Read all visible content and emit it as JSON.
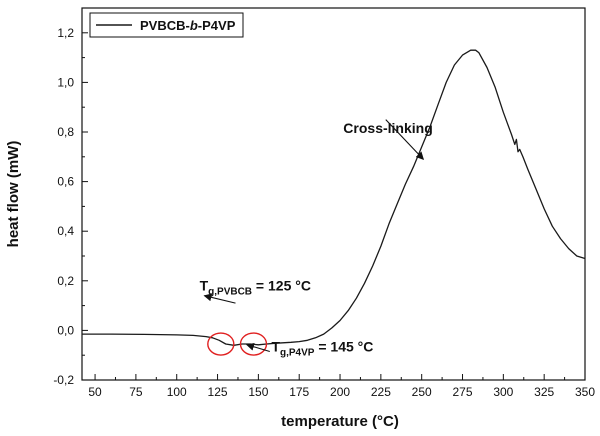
{
  "chart_data": {
    "type": "line",
    "xlabel": "temperature (°C)",
    "ylabel": "heat flow (mW)",
    "xlim": [
      42,
      350
    ],
    "ylim": [
      -0.2,
      1.3
    ],
    "x_ticks": [
      50,
      75,
      100,
      125,
      150,
      175,
      200,
      225,
      250,
      275,
      300,
      325,
      350
    ],
    "x_tick_labels": [
      "50",
      "75",
      "100",
      "125",
      "150",
      "175",
      "200",
      "225",
      "250",
      "275",
      "300",
      "325",
      "350"
    ],
    "y_ticks": [
      -0.2,
      0.0,
      0.2,
      0.4,
      0.6,
      0.8,
      1.0,
      1.2
    ],
    "y_tick_labels": [
      "-0,2",
      "0,0",
      "0,2",
      "0,4",
      "0,6",
      "0,8",
      "1,0",
      "1,2"
    ],
    "grid": false,
    "legend": {
      "placement": "top-left",
      "label": "PVBCB-b-P4VP",
      "label_parts": [
        {
          "text": "PVBCB-",
          "italic": false
        },
        {
          "text": "b",
          "italic": true
        },
        {
          "text": "-P4VP",
          "italic": false
        }
      ]
    },
    "series": [
      {
        "name": "PVBCB-b-P4VP",
        "color": "#1a1a1a",
        "x": [
          42,
          60,
          80,
          100,
          110,
          118,
          122,
          126,
          130,
          135,
          140,
          145,
          150,
          155,
          160,
          165,
          170,
          175,
          180,
          185,
          190,
          195,
          200,
          205,
          210,
          215,
          220,
          225,
          230,
          235,
          240,
          245,
          250,
          255,
          260,
          265,
          270,
          275,
          280,
          283,
          285,
          290,
          295,
          300,
          305,
          307,
          308,
          309,
          310,
          312,
          315,
          320,
          325,
          330,
          335,
          340,
          345,
          350
        ],
        "y": [
          -0.015,
          -0.015,
          -0.016,
          -0.018,
          -0.02,
          -0.025,
          -0.03,
          -0.04,
          -0.055,
          -0.06,
          -0.055,
          -0.055,
          -0.058,
          -0.055,
          -0.052,
          -0.05,
          -0.048,
          -0.045,
          -0.04,
          -0.03,
          -0.015,
          0.01,
          0.04,
          0.08,
          0.13,
          0.19,
          0.26,
          0.34,
          0.43,
          0.51,
          0.59,
          0.66,
          0.74,
          0.82,
          0.91,
          1.0,
          1.07,
          1.11,
          1.13,
          1.13,
          1.12,
          1.06,
          0.98,
          0.88,
          0.79,
          0.75,
          0.77,
          0.72,
          0.73,
          0.7,
          0.65,
          0.57,
          0.49,
          0.42,
          0.37,
          0.33,
          0.3,
          0.29
        ]
      }
    ],
    "annotations": [
      {
        "id": "tg-pvbcb",
        "base": "T",
        "sub": "g,PVBCB",
        "suffix": " = 125 °C",
        "label_at": [
          114,
          0.16
        ],
        "arrow_from": [
          136,
          0.11
        ],
        "arrow_to": [
          117,
          0.14
        ],
        "marker_at": [
          127,
          -0.055
        ]
      },
      {
        "id": "tg-p4vp",
        "base": "T",
        "sub": "g,P4VP",
        "suffix": " = 145 °C",
        "label_at": [
          158,
          -0.085
        ],
        "arrow_from": [
          157,
          -0.085
        ],
        "arrow_to": [
          143,
          -0.058
        ],
        "marker_at": [
          147,
          -0.055
        ]
      },
      {
        "id": "cross-linking",
        "text": "Cross-linking",
        "label_at": [
          202,
          0.795
        ],
        "arrow_from": [
          228,
          0.85
        ],
        "arrow_to": [
          251,
          0.69
        ]
      }
    ],
    "markers_color": "#e02020"
  }
}
